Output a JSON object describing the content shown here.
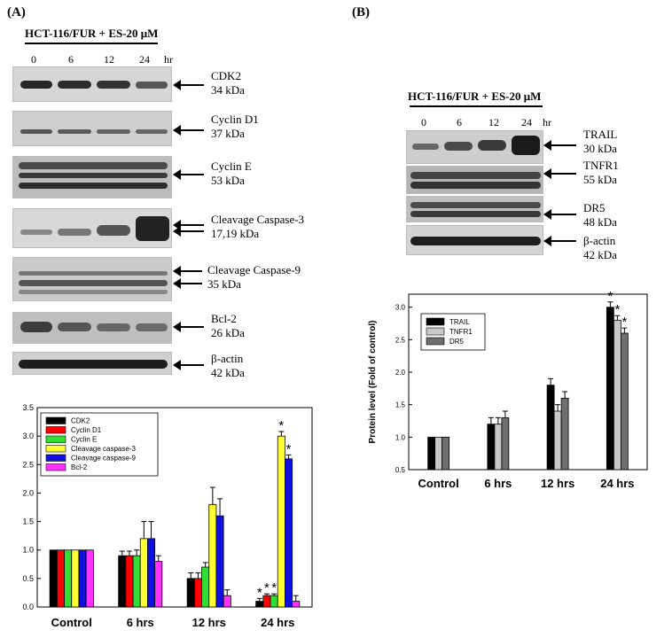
{
  "panel_a": {
    "label": "(A)",
    "condition": "HCT-116/FUR + ES-20 μM",
    "timepoints": [
      "0",
      "6",
      "12",
      "24"
    ],
    "time_unit": "hr",
    "proteins": [
      {
        "name": "CDK2",
        "size": "34 kDa"
      },
      {
        "name": "Cyclin D1",
        "size": "37  kDa"
      },
      {
        "name": "Cyclin E",
        "size": "53 kDa"
      },
      {
        "name": "Cleavage Caspase-3",
        "size": "17,19 kDa"
      },
      {
        "name": "Cleavage Caspase-9",
        "size": "35 kDa"
      },
      {
        "name": "Bcl-2",
        "size": "26 kDa"
      },
      {
        "name": "β-actin",
        "size": "42 kDa"
      }
    ]
  },
  "panel_b": {
    "label": "(B)",
    "condition": "HCT-116/FUR + ES-20 μM",
    "timepoints": [
      "0",
      "6",
      "12",
      "24"
    ],
    "time_unit": "hr",
    "proteins": [
      {
        "name": "TRAIL",
        "size": "30 kDa"
      },
      {
        "name": "TNFR1",
        "size": "55 kDa"
      },
      {
        "name": "DR5",
        "size": "48 kDa"
      },
      {
        "name": "β-actin",
        "size": "42 kDa"
      }
    ]
  },
  "colors": {
    "CDK2": "#000000",
    "Cyclin D1": "#ff0000",
    "Cyclin E": "#33dd33",
    "Cleavage caspase-3": "#ffff33",
    "Cleavage caspase-9": "#1010e0",
    "Bcl-2": "#ff33ff",
    "TRAIL": "#000000",
    "TNFR1": "#c8c8c8",
    "DR5": "#6e6e6e"
  },
  "chart_data": [
    {
      "type": "bar",
      "categories": [
        "Control",
        "6 hrs",
        "12 hrs",
        "24 hrs"
      ],
      "ylabel": "",
      "ylim": [
        0.0,
        3.5
      ],
      "yticks": [
        "0.0",
        "0.5",
        "1.0",
        "1.5",
        "2.0",
        "2.5",
        "3.0",
        "3.5"
      ],
      "legend_position": "top-left",
      "series": [
        {
          "name": "CDK2",
          "values": [
            1.0,
            0.9,
            0.5,
            0.1
          ],
          "errors": [
            0,
            0.08,
            0.1,
            0.05
          ],
          "sig": [
            false,
            false,
            false,
            true
          ]
        },
        {
          "name": "Cyclin D1",
          "values": [
            1.0,
            0.9,
            0.5,
            0.2
          ],
          "errors": [
            0,
            0.08,
            0.1,
            0.03
          ],
          "sig": [
            false,
            false,
            false,
            true
          ]
        },
        {
          "name": "Cyclin E",
          "values": [
            1.0,
            0.9,
            0.7,
            0.2
          ],
          "errors": [
            0,
            0.1,
            0.08,
            0.03
          ],
          "sig": [
            false,
            false,
            false,
            true
          ]
        },
        {
          "name": "Cleavage caspase-3",
          "values": [
            1.0,
            1.2,
            1.8,
            3.0
          ],
          "errors": [
            0,
            0.3,
            0.3,
            0.08
          ],
          "sig": [
            false,
            false,
            false,
            true
          ]
        },
        {
          "name": "Cleavage caspase-9",
          "values": [
            1.0,
            1.2,
            1.6,
            2.6
          ],
          "errors": [
            0,
            0.3,
            0.3,
            0.07
          ],
          "sig": [
            false,
            false,
            false,
            true
          ]
        },
        {
          "name": "Bcl-2",
          "values": [
            1.0,
            0.8,
            0.2,
            0.1
          ],
          "errors": [
            0,
            0.1,
            0.1,
            0.1
          ],
          "sig": [
            false,
            false,
            false,
            false
          ]
        }
      ]
    },
    {
      "type": "bar",
      "categories": [
        "Control",
        "6 hrs",
        "12 hrs",
        "24 hrs"
      ],
      "ylabel": "Protein level (Fold of control)",
      "ylim": [
        0.5,
        3.2
      ],
      "yticks": [
        "0.5",
        "1.0",
        "1.5",
        "2.0",
        "2.5",
        "3.0"
      ],
      "legend_position": "top-left",
      "series": [
        {
          "name": "TRAIL",
          "values": [
            1.0,
            1.2,
            1.8,
            3.0
          ],
          "errors": [
            0,
            0.1,
            0.1,
            0.08
          ],
          "sig": [
            false,
            false,
            false,
            true
          ]
        },
        {
          "name": "TNFR1",
          "values": [
            1.0,
            1.2,
            1.4,
            2.8
          ],
          "errors": [
            0,
            0.1,
            0.1,
            0.07
          ],
          "sig": [
            false,
            false,
            false,
            true
          ]
        },
        {
          "name": "DR5",
          "values": [
            1.0,
            1.3,
            1.6,
            2.6
          ],
          "errors": [
            0,
            0.1,
            0.1,
            0.08
          ],
          "sig": [
            false,
            false,
            false,
            true
          ]
        }
      ]
    }
  ]
}
